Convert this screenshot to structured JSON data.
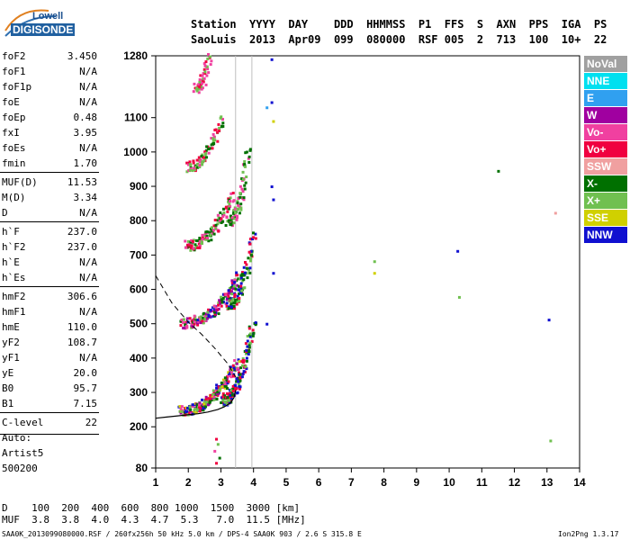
{
  "logo": {
    "line1": "Lowell",
    "line2": "DIGISONDE"
  },
  "header": {
    "labels": [
      "Station",
      "YYYY",
      "DAY",
      "DDD",
      "HHMMSS",
      "P1",
      "FFS",
      "S",
      "AXN",
      "PPS",
      "IGA",
      "PS"
    ],
    "values": [
      "SaoLuis",
      "2013",
      "Apr09",
      "099",
      "080000",
      "RSF",
      "005",
      "2",
      "713",
      "100",
      "10+",
      "22"
    ]
  },
  "params": [
    {
      "name": "foF2",
      "value": "3.450"
    },
    {
      "name": "foF1",
      "value": "N/A"
    },
    {
      "name": "foF1p",
      "value": "N/A"
    },
    {
      "name": "foE",
      "value": "N/A"
    },
    {
      "name": "foEp",
      "value": "0.48"
    },
    {
      "name": "fxI",
      "value": "3.95"
    },
    {
      "name": "foEs",
      "value": "N/A"
    },
    {
      "name": "fmin",
      "value": "1.70"
    },
    {
      "name": "MUF(D)",
      "value": "11.53"
    },
    {
      "name": "M(D)",
      "value": "3.34"
    },
    {
      "name": "D",
      "value": "N/A"
    },
    {
      "name": "h`F",
      "value": "237.0"
    },
    {
      "name": "h`F2",
      "value": "237.0"
    },
    {
      "name": "h`E",
      "value": "N/A"
    },
    {
      "name": "h`Es",
      "value": "N/A"
    },
    {
      "name": "hmF2",
      "value": "306.6"
    },
    {
      "name": "hmF1",
      "value": "N/A"
    },
    {
      "name": "hmE",
      "value": "110.0"
    },
    {
      "name": "yF2",
      "value": "108.7"
    },
    {
      "name": "yF1",
      "value": "N/A"
    },
    {
      "name": "yE",
      "value": "20.0"
    },
    {
      "name": "B0",
      "value": "95.7"
    },
    {
      "name": "B1",
      "value": "7.15"
    },
    {
      "name": "C-level",
      "value": "22"
    }
  ],
  "autoscale": {
    "line1": "Auto:",
    "line2": "Artist5",
    "line3": "500200"
  },
  "legend": [
    {
      "label": "NoVal",
      "color": "#a0a0a0"
    },
    {
      "label": "NNE",
      "color": "#00e0f0"
    },
    {
      "label": "E",
      "color": "#30a0f0"
    },
    {
      "label": "W",
      "color": "#a000a0"
    },
    {
      "label": "Vo-",
      "color": "#f040a0"
    },
    {
      "label": "Vo+",
      "color": "#f00040"
    },
    {
      "label": "SSW",
      "color": "#f0a0a0"
    },
    {
      "label": "X-",
      "color": "#007000"
    },
    {
      "label": "X+",
      "color": "#70c050"
    },
    {
      "label": "SSE",
      "color": "#d0d000"
    },
    {
      "label": "NNW",
      "color": "#1010d0"
    }
  ],
  "bottom_table": {
    "d_label": "D",
    "d_values": [
      "100",
      "200",
      "400",
      "600",
      "800",
      "1000",
      "1500",
      "3000"
    ],
    "d_unit": "[km]",
    "muf_label": "MUF",
    "muf_values": [
      "3.8",
      "3.8",
      "4.0",
      "4.3",
      "4.7",
      "5.3",
      "7.0",
      "11.5"
    ],
    "muf_unit": "[MHz]"
  },
  "footer": {
    "left": "SAA0K_2013099080000.RSF / 260fx256h 50 kHz 5.0 km / DPS-4 SAA0K 903 / 2.6 S 315.8 E",
    "right": "Ion2Png 1.3.17"
  },
  "chart_data": {
    "type": "scatter",
    "xlim": [
      1,
      14
    ],
    "ylim": [
      80,
      1280
    ],
    "x_ticks": [
      "1",
      "2",
      "3",
      "4",
      "5",
      "6",
      "7",
      "8",
      "9",
      "10",
      "11",
      "12",
      "13",
      "14"
    ],
    "y_ticks": [
      "80",
      "200",
      "300",
      "400",
      "500",
      "600",
      "700",
      "800",
      "900",
      "1000",
      "1100",
      "1280"
    ],
    "foF2_marker": 3.45,
    "fxI_marker": 3.95,
    "profile": [
      [
        3.45,
        306.6
      ],
      [
        3.4,
        285
      ],
      [
        3.3,
        270
      ],
      [
        3.1,
        258
      ],
      [
        2.9,
        250
      ],
      [
        2.6,
        243
      ],
      [
        2.3,
        238
      ],
      [
        2.0,
        235
      ],
      [
        1.7,
        232
      ],
      [
        1.3,
        228
      ],
      [
        1.0,
        225
      ]
    ],
    "muf_curve": [
      [
        1.0,
        640
      ],
      [
        1.5,
        560
      ],
      [
        2.0,
        505
      ],
      [
        2.4,
        470
      ],
      [
        2.8,
        430
      ],
      [
        3.2,
        385
      ],
      [
        3.45,
        345
      ]
    ],
    "traces": [
      {
        "x0": 1.75,
        "y0": 250,
        "x1": 3.45,
        "y1": 390,
        "n": 55,
        "colors": [
          "#f00040",
          "#f040a0",
          "#007000",
          "#70c050",
          "#1010d0",
          "#a000a0",
          "#d0d000"
        ]
      },
      {
        "x0": 3.0,
        "y0": 280,
        "x1": 3.95,
        "y1": 500,
        "n": 35,
        "colors": [
          "#f00040",
          "#70c050",
          "#007000",
          "#1010d0"
        ]
      },
      {
        "x0": 1.8,
        "y0": 505,
        "x1": 3.5,
        "y1": 640,
        "n": 40,
        "colors": [
          "#f00040",
          "#f040a0",
          "#70c050",
          "#1010d0",
          "#007000",
          "#a000a0"
        ]
      },
      {
        "x0": 3.2,
        "y0": 560,
        "x1": 3.95,
        "y1": 760,
        "n": 25,
        "colors": [
          "#70c050",
          "#007000",
          "#f00040",
          "#1010d0"
        ]
      },
      {
        "x0": 1.9,
        "y0": 730,
        "x1": 3.3,
        "y1": 870,
        "n": 30,
        "colors": [
          "#f00040",
          "#f040a0",
          "#007000",
          "#70c050"
        ]
      },
      {
        "x0": 3.2,
        "y0": 800,
        "x1": 3.8,
        "y1": 1000,
        "n": 20,
        "colors": [
          "#70c050",
          "#007000",
          "#f040a0"
        ]
      },
      {
        "x0": 1.95,
        "y0": 960,
        "x1": 3.0,
        "y1": 1100,
        "n": 22,
        "colors": [
          "#f040a0",
          "#f00040",
          "#70c050",
          "#007000"
        ]
      },
      {
        "x0": 2.2,
        "y0": 1190,
        "x1": 2.6,
        "y1": 1280,
        "n": 12,
        "colors": [
          "#f040a0",
          "#70c050",
          "#f00040"
        ]
      }
    ],
    "scattered": [
      {
        "x": 4.55,
        "y": 1270,
        "c": "#1010d0"
      },
      {
        "x": 4.55,
        "y": 1145,
        "c": "#1010d0"
      },
      {
        "x": 4.4,
        "y": 1130,
        "c": "#30a0f0"
      },
      {
        "x": 4.6,
        "y": 1090,
        "c": "#d0d000"
      },
      {
        "x": 4.55,
        "y": 900,
        "c": "#1010d0"
      },
      {
        "x": 4.6,
        "y": 862,
        "c": "#1010d0"
      },
      {
        "x": 4.6,
        "y": 648,
        "c": "#1010d0"
      },
      {
        "x": 4.4,
        "y": 500,
        "c": "#1010d0"
      },
      {
        "x": 7.7,
        "y": 682,
        "c": "#70c050"
      },
      {
        "x": 7.7,
        "y": 648,
        "c": "#d0d000"
      },
      {
        "x": 10.25,
        "y": 712,
        "c": "#1010d0"
      },
      {
        "x": 10.3,
        "y": 578,
        "c": "#70c050"
      },
      {
        "x": 11.5,
        "y": 945,
        "c": "#007000"
      },
      {
        "x": 13.25,
        "y": 823,
        "c": "#f0a0a0"
      },
      {
        "x": 13.05,
        "y": 512,
        "c": "#1010d0"
      },
      {
        "x": 13.1,
        "y": 160,
        "c": "#70c050"
      },
      {
        "x": 2.85,
        "y": 165,
        "c": "#f00040"
      },
      {
        "x": 2.9,
        "y": 150,
        "c": "#70c050"
      },
      {
        "x": 2.8,
        "y": 130,
        "c": "#f040a0"
      },
      {
        "x": 2.95,
        "y": 110,
        "c": "#007000"
      },
      {
        "x": 2.85,
        "y": 95,
        "c": "#f00040"
      }
    ]
  }
}
